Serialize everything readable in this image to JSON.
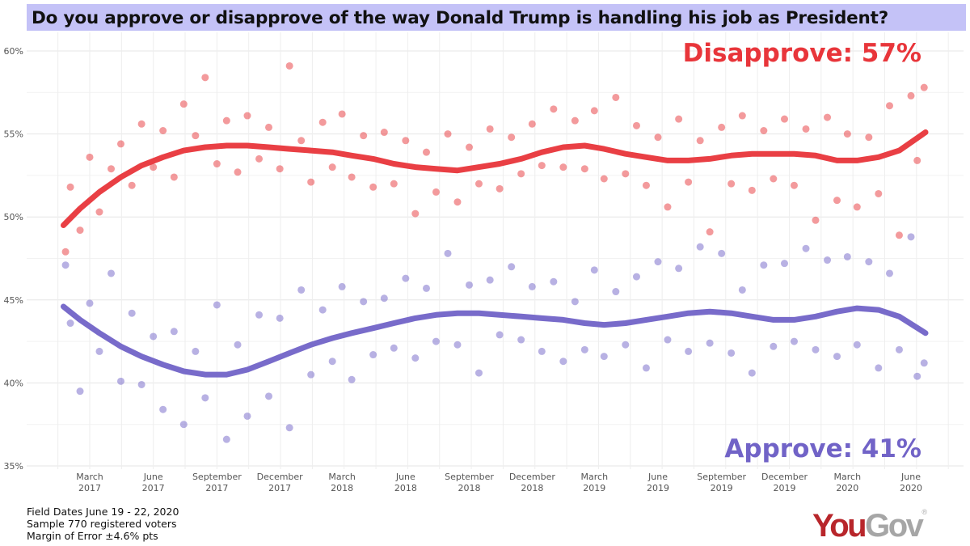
{
  "title": "Do you approve or disapprove of the way Donald Trump is handling his job as President?",
  "footer": {
    "field_dates": "Field Dates June 19 - 22, 2020",
    "sample": "Sample 770 registered voters",
    "margin": "Margin of Error ±4.6% pts"
  },
  "logo": {
    "part1": "You",
    "part2": "Gov",
    "reg": "®",
    "color1": "#b8262b",
    "color2": "#a6a6a6"
  },
  "chart_data": {
    "type": "scatter",
    "title": "Do you approve or disapprove of the way Donald Trump is handling his job as President?",
    "ylim": [
      35,
      60
    ],
    "y_ticks": [
      {
        "v": 35,
        "label": "35%"
      },
      {
        "v": 40,
        "label": "40%"
      },
      {
        "v": 45,
        "label": "45%"
      },
      {
        "v": 50,
        "label": "50%"
      },
      {
        "v": 55,
        "label": "55%"
      },
      {
        "v": 60,
        "label": "60%"
      }
    ],
    "x_ticks": [
      {
        "date": "2017-03-01",
        "month": "March",
        "year": "2017"
      },
      {
        "date": "2017-06-01",
        "month": "June",
        "year": "2017"
      },
      {
        "date": "2017-09-01",
        "month": "September",
        "year": "2017"
      },
      {
        "date": "2017-12-01",
        "month": "December",
        "year": "2017"
      },
      {
        "date": "2018-03-01",
        "month": "March",
        "year": "2018"
      },
      {
        "date": "2018-06-01",
        "month": "June",
        "year": "2018"
      },
      {
        "date": "2018-09-01",
        "month": "September",
        "year": "2018"
      },
      {
        "date": "2018-12-01",
        "month": "December",
        "year": "2018"
      },
      {
        "date": "2019-03-01",
        "month": "March",
        "year": "2019"
      },
      {
        "date": "2019-06-01",
        "month": "June",
        "year": "2019"
      },
      {
        "date": "2019-09-01",
        "month": "September",
        "year": "2019"
      },
      {
        "date": "2019-12-01",
        "month": "December",
        "year": "2019"
      },
      {
        "date": "2020-03-01",
        "month": "March",
        "year": "2020"
      },
      {
        "date": "2020-06-01",
        "month": "June",
        "year": "2020"
      }
    ],
    "grid": true,
    "series": [
      {
        "name": "Disapprove",
        "label": "Disapprove: 57%",
        "color": "#e8353a",
        "trend": [
          [
            "2017-01-22",
            49.5
          ],
          [
            "2017-02-15",
            50.5
          ],
          [
            "2017-03-15",
            51.5
          ],
          [
            "2017-04-15",
            52.4
          ],
          [
            "2017-05-15",
            53.1
          ],
          [
            "2017-06-15",
            53.6
          ],
          [
            "2017-07-15",
            54.0
          ],
          [
            "2017-08-15",
            54.2
          ],
          [
            "2017-09-15",
            54.3
          ],
          [
            "2017-10-15",
            54.3
          ],
          [
            "2017-11-15",
            54.2
          ],
          [
            "2017-12-15",
            54.1
          ],
          [
            "2018-01-15",
            54.0
          ],
          [
            "2018-02-15",
            53.9
          ],
          [
            "2018-03-15",
            53.7
          ],
          [
            "2018-04-15",
            53.5
          ],
          [
            "2018-05-15",
            53.2
          ],
          [
            "2018-06-15",
            53.0
          ],
          [
            "2018-07-15",
            52.9
          ],
          [
            "2018-08-15",
            52.8
          ],
          [
            "2018-09-15",
            53.0
          ],
          [
            "2018-10-15",
            53.2
          ],
          [
            "2018-11-15",
            53.5
          ],
          [
            "2018-12-15",
            53.9
          ],
          [
            "2019-01-15",
            54.2
          ],
          [
            "2019-02-15",
            54.3
          ],
          [
            "2019-03-15",
            54.1
          ],
          [
            "2019-04-15",
            53.8
          ],
          [
            "2019-05-15",
            53.6
          ],
          [
            "2019-06-15",
            53.4
          ],
          [
            "2019-07-15",
            53.4
          ],
          [
            "2019-08-15",
            53.5
          ],
          [
            "2019-09-15",
            53.7
          ],
          [
            "2019-10-15",
            53.8
          ],
          [
            "2019-11-15",
            53.8
          ],
          [
            "2019-12-15",
            53.8
          ],
          [
            "2020-01-15",
            53.7
          ],
          [
            "2020-02-15",
            53.4
          ],
          [
            "2020-03-15",
            53.4
          ],
          [
            "2020-04-15",
            53.6
          ],
          [
            "2020-05-15",
            54.0
          ],
          [
            "2020-06-22",
            55.1
          ]
        ],
        "points": [
          [
            "2017-01-25",
            47.9
          ],
          [
            "2017-02-01",
            51.8
          ],
          [
            "2017-02-15",
            49.2
          ],
          [
            "2017-03-01",
            53.6
          ],
          [
            "2017-03-15",
            50.3
          ],
          [
            "2017-04-01",
            52.9
          ],
          [
            "2017-04-15",
            54.4
          ],
          [
            "2017-05-01",
            51.9
          ],
          [
            "2017-05-15",
            55.6
          ],
          [
            "2017-06-01",
            53.0
          ],
          [
            "2017-06-15",
            55.2
          ],
          [
            "2017-07-01",
            52.4
          ],
          [
            "2017-07-15",
            56.8
          ],
          [
            "2017-08-01",
            54.9
          ],
          [
            "2017-08-15",
            58.4
          ],
          [
            "2017-09-01",
            53.2
          ],
          [
            "2017-09-15",
            55.8
          ],
          [
            "2017-10-01",
            52.7
          ],
          [
            "2017-10-15",
            56.1
          ],
          [
            "2017-11-01",
            53.5
          ],
          [
            "2017-11-15",
            55.4
          ],
          [
            "2017-12-01",
            52.9
          ],
          [
            "2017-12-15",
            59.1
          ],
          [
            "2018-01-01",
            54.6
          ],
          [
            "2018-01-15",
            52.1
          ],
          [
            "2018-02-01",
            55.7
          ],
          [
            "2018-02-15",
            53.0
          ],
          [
            "2018-03-01",
            56.2
          ],
          [
            "2018-03-15",
            52.4
          ],
          [
            "2018-04-01",
            54.9
          ],
          [
            "2018-04-15",
            51.8
          ],
          [
            "2018-05-01",
            55.1
          ],
          [
            "2018-05-15",
            52.0
          ],
          [
            "2018-06-01",
            54.6
          ],
          [
            "2018-06-15",
            50.2
          ],
          [
            "2018-07-01",
            53.9
          ],
          [
            "2018-07-15",
            51.5
          ],
          [
            "2018-08-01",
            55.0
          ],
          [
            "2018-08-15",
            50.9
          ],
          [
            "2018-09-01",
            54.2
          ],
          [
            "2018-09-15",
            52.0
          ],
          [
            "2018-10-01",
            55.3
          ],
          [
            "2018-10-15",
            51.7
          ],
          [
            "2018-11-01",
            54.8
          ],
          [
            "2018-11-15",
            52.6
          ],
          [
            "2018-12-01",
            55.6
          ],
          [
            "2018-12-15",
            53.1
          ],
          [
            "2019-01-01",
            56.5
          ],
          [
            "2019-01-15",
            53.0
          ],
          [
            "2019-02-01",
            55.8
          ],
          [
            "2019-02-15",
            52.9
          ],
          [
            "2019-03-01",
            56.4
          ],
          [
            "2019-03-15",
            52.3
          ],
          [
            "2019-04-01",
            57.2
          ],
          [
            "2019-04-15",
            52.6
          ],
          [
            "2019-05-01",
            55.5
          ],
          [
            "2019-05-15",
            51.9
          ],
          [
            "2019-06-01",
            54.8
          ],
          [
            "2019-06-15",
            50.6
          ],
          [
            "2019-07-01",
            55.9
          ],
          [
            "2019-07-15",
            52.1
          ],
          [
            "2019-08-01",
            54.6
          ],
          [
            "2019-08-15",
            49.1
          ],
          [
            "2019-09-01",
            55.4
          ],
          [
            "2019-09-15",
            52.0
          ],
          [
            "2019-10-01",
            56.1
          ],
          [
            "2019-10-15",
            51.6
          ],
          [
            "2019-11-01",
            55.2
          ],
          [
            "2019-11-15",
            52.3
          ],
          [
            "2019-12-01",
            55.9
          ],
          [
            "2019-12-15",
            51.9
          ],
          [
            "2020-01-01",
            55.3
          ],
          [
            "2020-01-15",
            49.8
          ],
          [
            "2020-02-01",
            56.0
          ],
          [
            "2020-02-15",
            51.0
          ],
          [
            "2020-03-01",
            55.0
          ],
          [
            "2020-03-15",
            50.6
          ],
          [
            "2020-04-01",
            54.8
          ],
          [
            "2020-04-15",
            51.4
          ],
          [
            "2020-05-01",
            56.7
          ],
          [
            "2020-05-15",
            48.9
          ],
          [
            "2020-06-01",
            57.3
          ],
          [
            "2020-06-10",
            53.4
          ],
          [
            "2020-06-20",
            57.8
          ]
        ]
      },
      {
        "name": "Approve",
        "label": "Approve: 41%",
        "color": "#7163c7",
        "trend": [
          [
            "2017-01-22",
            44.6
          ],
          [
            "2017-02-15",
            43.8
          ],
          [
            "2017-03-15",
            43.0
          ],
          [
            "2017-04-15",
            42.2
          ],
          [
            "2017-05-15",
            41.6
          ],
          [
            "2017-06-15",
            41.1
          ],
          [
            "2017-07-15",
            40.7
          ],
          [
            "2017-08-15",
            40.5
          ],
          [
            "2017-09-15",
            40.5
          ],
          [
            "2017-10-15",
            40.8
          ],
          [
            "2017-11-15",
            41.3
          ],
          [
            "2017-12-15",
            41.8
          ],
          [
            "2018-01-15",
            42.3
          ],
          [
            "2018-02-15",
            42.7
          ],
          [
            "2018-03-15",
            43.0
          ],
          [
            "2018-04-15",
            43.3
          ],
          [
            "2018-05-15",
            43.6
          ],
          [
            "2018-06-15",
            43.9
          ],
          [
            "2018-07-15",
            44.1
          ],
          [
            "2018-08-15",
            44.2
          ],
          [
            "2018-09-15",
            44.2
          ],
          [
            "2018-10-15",
            44.1
          ],
          [
            "2018-11-15",
            44.0
          ],
          [
            "2018-12-15",
            43.9
          ],
          [
            "2019-01-15",
            43.8
          ],
          [
            "2019-02-15",
            43.6
          ],
          [
            "2019-03-15",
            43.5
          ],
          [
            "2019-04-15",
            43.6
          ],
          [
            "2019-05-15",
            43.8
          ],
          [
            "2019-06-15",
            44.0
          ],
          [
            "2019-07-15",
            44.2
          ],
          [
            "2019-08-15",
            44.3
          ],
          [
            "2019-09-15",
            44.2
          ],
          [
            "2019-10-15",
            44.0
          ],
          [
            "2019-11-15",
            43.8
          ],
          [
            "2019-12-15",
            43.8
          ],
          [
            "2020-01-15",
            44.0
          ],
          [
            "2020-02-15",
            44.3
          ],
          [
            "2020-03-15",
            44.5
          ],
          [
            "2020-04-15",
            44.4
          ],
          [
            "2020-05-15",
            44.0
          ],
          [
            "2020-06-22",
            43.0
          ]
        ],
        "points": [
          [
            "2017-01-25",
            47.1
          ],
          [
            "2017-02-01",
            43.6
          ],
          [
            "2017-02-15",
            39.5
          ],
          [
            "2017-03-01",
            44.8
          ],
          [
            "2017-03-15",
            41.9
          ],
          [
            "2017-04-01",
            46.6
          ],
          [
            "2017-04-15",
            40.1
          ],
          [
            "2017-05-01",
            44.2
          ],
          [
            "2017-05-15",
            39.9
          ],
          [
            "2017-06-01",
            42.8
          ],
          [
            "2017-06-15",
            38.4
          ],
          [
            "2017-07-01",
            43.1
          ],
          [
            "2017-07-15",
            37.5
          ],
          [
            "2017-08-01",
            41.9
          ],
          [
            "2017-08-15",
            39.1
          ],
          [
            "2017-09-01",
            44.7
          ],
          [
            "2017-09-15",
            36.6
          ],
          [
            "2017-10-01",
            42.3
          ],
          [
            "2017-10-15",
            38.0
          ],
          [
            "2017-11-01",
            44.1
          ],
          [
            "2017-11-15",
            39.2
          ],
          [
            "2017-12-01",
            43.9
          ],
          [
            "2017-12-15",
            37.3
          ],
          [
            "2018-01-01",
            45.6
          ],
          [
            "2018-01-15",
            40.5
          ],
          [
            "2018-02-01",
            44.4
          ],
          [
            "2018-02-15",
            41.3
          ],
          [
            "2018-03-01",
            45.8
          ],
          [
            "2018-03-15",
            40.2
          ],
          [
            "2018-04-01",
            44.9
          ],
          [
            "2018-04-15",
            41.7
          ],
          [
            "2018-05-01",
            45.1
          ],
          [
            "2018-05-15",
            42.1
          ],
          [
            "2018-06-01",
            46.3
          ],
          [
            "2018-06-15",
            41.5
          ],
          [
            "2018-07-01",
            45.7
          ],
          [
            "2018-07-15",
            42.5
          ],
          [
            "2018-08-01",
            47.8
          ],
          [
            "2018-08-15",
            42.3
          ],
          [
            "2018-09-01",
            45.9
          ],
          [
            "2018-09-15",
            40.6
          ],
          [
            "2018-10-01",
            46.2
          ],
          [
            "2018-10-15",
            42.9
          ],
          [
            "2018-11-01",
            47.0
          ],
          [
            "2018-11-15",
            42.6
          ],
          [
            "2018-12-01",
            45.8
          ],
          [
            "2018-12-15",
            41.9
          ],
          [
            "2019-01-01",
            46.1
          ],
          [
            "2019-01-15",
            41.3
          ],
          [
            "2019-02-01",
            44.9
          ],
          [
            "2019-02-15",
            42.0
          ],
          [
            "2019-03-01",
            46.8
          ],
          [
            "2019-03-15",
            41.6
          ],
          [
            "2019-04-01",
            45.5
          ],
          [
            "2019-04-15",
            42.3
          ],
          [
            "2019-05-01",
            46.4
          ],
          [
            "2019-05-15",
            40.9
          ],
          [
            "2019-06-01",
            47.3
          ],
          [
            "2019-06-15",
            42.6
          ],
          [
            "2019-07-01",
            46.9
          ],
          [
            "2019-07-15",
            41.9
          ],
          [
            "2019-08-01",
            48.2
          ],
          [
            "2019-08-15",
            42.4
          ],
          [
            "2019-09-01",
            47.8
          ],
          [
            "2019-09-15",
            41.8
          ],
          [
            "2019-10-01",
            45.6
          ],
          [
            "2019-10-15",
            40.6
          ],
          [
            "2019-11-01",
            47.1
          ],
          [
            "2019-11-15",
            42.2
          ],
          [
            "2019-12-01",
            47.2
          ],
          [
            "2019-12-15",
            42.5
          ],
          [
            "2020-01-01",
            48.1
          ],
          [
            "2020-01-15",
            42.0
          ],
          [
            "2020-02-01",
            47.4
          ],
          [
            "2020-02-15",
            41.6
          ],
          [
            "2020-03-01",
            47.6
          ],
          [
            "2020-03-15",
            42.3
          ],
          [
            "2020-04-01",
            47.3
          ],
          [
            "2020-04-15",
            40.9
          ],
          [
            "2020-05-01",
            46.6
          ],
          [
            "2020-05-15",
            42.0
          ],
          [
            "2020-06-01",
            48.8
          ],
          [
            "2020-06-10",
            40.4
          ],
          [
            "2020-06-20",
            41.2
          ]
        ]
      }
    ]
  }
}
